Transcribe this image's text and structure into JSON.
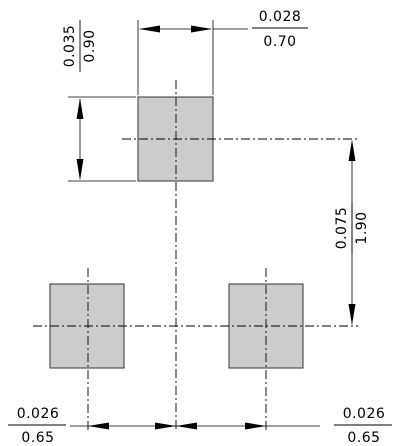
{
  "dimensions": {
    "top_pad_height": {
      "inch": "0.035",
      "mm": "0.90"
    },
    "top_pad_width": {
      "inch": "0.028",
      "mm": "0.70"
    },
    "vertical_pitch": {
      "inch": "0.075",
      "mm": "1.90"
    },
    "left_offset": {
      "inch": "0.026",
      "mm": "0.65"
    },
    "right_offset": {
      "inch": "0.026",
      "mm": "0.65"
    }
  },
  "colors": {
    "pad_fill": "#cccccc",
    "pad_stroke": "#333333",
    "line": "#000000"
  }
}
